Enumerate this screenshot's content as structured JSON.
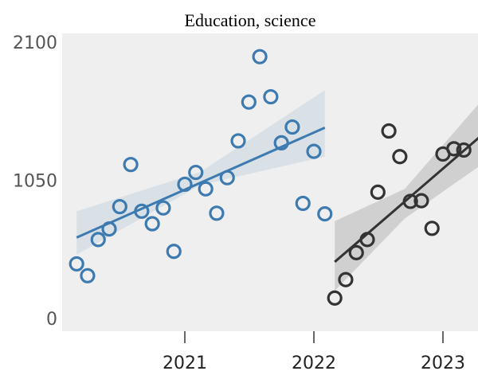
{
  "chart_data": {
    "type": "scatter",
    "title": "Education, science",
    "xlabel": "",
    "ylabel": "",
    "ylim": [
      0,
      2100
    ],
    "xlim": [
      "2020-02-15",
      "2023-04-15"
    ],
    "yticks": [
      0,
      1050,
      2100
    ],
    "xticks": [
      "2021",
      "2022",
      "2023"
    ],
    "xtick_dates": [
      "2021-01-01",
      "2022-01-01",
      "2023-01-01"
    ],
    "grid": false,
    "background": "#efefef",
    "series": [
      {
        "color": "#3d7ab0",
        "points": [
          {
            "x": "2020-03-01",
            "y": 415
          },
          {
            "x": "2020-04-01",
            "y": 325
          },
          {
            "x": "2020-05-01",
            "y": 600
          },
          {
            "x": "2020-06-01",
            "y": 680
          },
          {
            "x": "2020-07-01",
            "y": 850
          },
          {
            "x": "2020-08-01",
            "y": 1170
          },
          {
            "x": "2020-09-01",
            "y": 815
          },
          {
            "x": "2020-10-01",
            "y": 720
          },
          {
            "x": "2020-11-01",
            "y": 840
          },
          {
            "x": "2020-12-01",
            "y": 510
          },
          {
            "x": "2021-01-01",
            "y": 1020
          },
          {
            "x": "2021-02-01",
            "y": 1110
          },
          {
            "x": "2021-03-01",
            "y": 985
          },
          {
            "x": "2021-04-01",
            "y": 800
          },
          {
            "x": "2021-05-01",
            "y": 1070
          },
          {
            "x": "2021-06-01",
            "y": 1350
          },
          {
            "x": "2021-07-01",
            "y": 1645
          },
          {
            "x": "2021-08-01",
            "y": 1990
          },
          {
            "x": "2021-09-01",
            "y": 1685
          },
          {
            "x": "2021-10-01",
            "y": 1335
          },
          {
            "x": "2021-11-01",
            "y": 1455
          },
          {
            "x": "2021-12-01",
            "y": 875
          },
          {
            "x": "2022-01-01",
            "y": 1270
          },
          {
            "x": "2022-02-01",
            "y": 795
          }
        ],
        "trend": {
          "x": [
            "2020-03-01",
            "2022-02-01"
          ],
          "y": [
            615,
            1450
          ]
        },
        "band": {
          "x": [
            "2020-03-01",
            "2021-02-15",
            "2022-02-01"
          ],
          "lower": [
            485,
            1015,
            1230
          ],
          "upper": [
            815,
            1115,
            1735
          ]
        }
      },
      {
        "color": "#333333",
        "points": [
          {
            "x": "2022-03-01",
            "y": 155
          },
          {
            "x": "2022-04-01",
            "y": 295
          },
          {
            "x": "2022-05-01",
            "y": 500
          },
          {
            "x": "2022-06-01",
            "y": 600
          },
          {
            "x": "2022-07-01",
            "y": 960
          },
          {
            "x": "2022-08-01",
            "y": 1425
          },
          {
            "x": "2022-09-01",
            "y": 1230
          },
          {
            "x": "2022-10-01",
            "y": 890
          },
          {
            "x": "2022-11-01",
            "y": 895
          },
          {
            "x": "2022-12-01",
            "y": 685
          },
          {
            "x": "2023-01-01",
            "y": 1250
          },
          {
            "x": "2023-02-01",
            "y": 1290
          },
          {
            "x": "2023-03-01",
            "y": 1280
          }
        ],
        "trend": {
          "x": [
            "2022-03-01",
            "2023-04-15"
          ],
          "y": [
            430,
            1380
          ]
        },
        "band": {
          "x": [
            "2022-03-01",
            "2022-09-15",
            "2023-04-15"
          ],
          "lower": [
            210,
            760,
            1160
          ],
          "upper": [
            740,
            985,
            1640
          ]
        }
      }
    ]
  }
}
